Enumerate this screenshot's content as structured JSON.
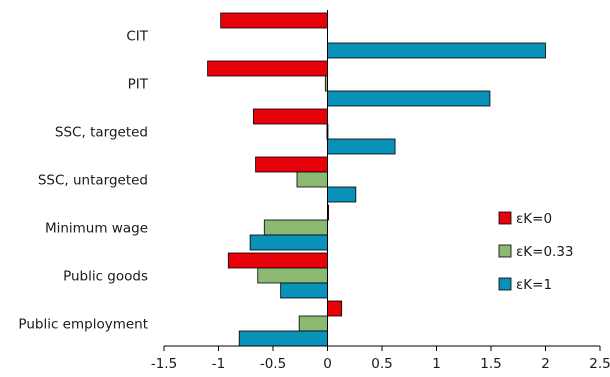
{
  "chart_data": {
    "type": "bar",
    "orientation": "horizontal",
    "categories": [
      "CIT",
      "PIT",
      "SSC, targeted",
      "SSC, untargeted",
      "Minimum wage",
      "Public goods",
      "Public employment"
    ],
    "series": [
      {
        "name": "εK=0",
        "color": "#e8000b",
        "values": [
          -0.98,
          -1.1,
          -0.68,
          -0.66,
          0.01,
          -0.91,
          0.13
        ]
      },
      {
        "name": "εK=0.33",
        "color": "#8dba72",
        "values": [
          0.0,
          -0.02,
          -0.005,
          -0.28,
          -0.58,
          -0.64,
          -0.26
        ]
      },
      {
        "name": "εK=1",
        "color": "#0a91b8",
        "values": [
          2.0,
          1.49,
          0.62,
          0.26,
          -0.71,
          -0.43,
          -0.81
        ]
      }
    ],
    "xlim": [
      -1.5,
      2.5
    ],
    "xticks": [
      "-1.5",
      "-1",
      "-0.5",
      "0",
      "0.5",
      "1",
      "1.5",
      "2",
      "2.5"
    ],
    "title": "",
    "xlabel": "",
    "ylabel": "",
    "grid": false,
    "legend_position": "right"
  }
}
